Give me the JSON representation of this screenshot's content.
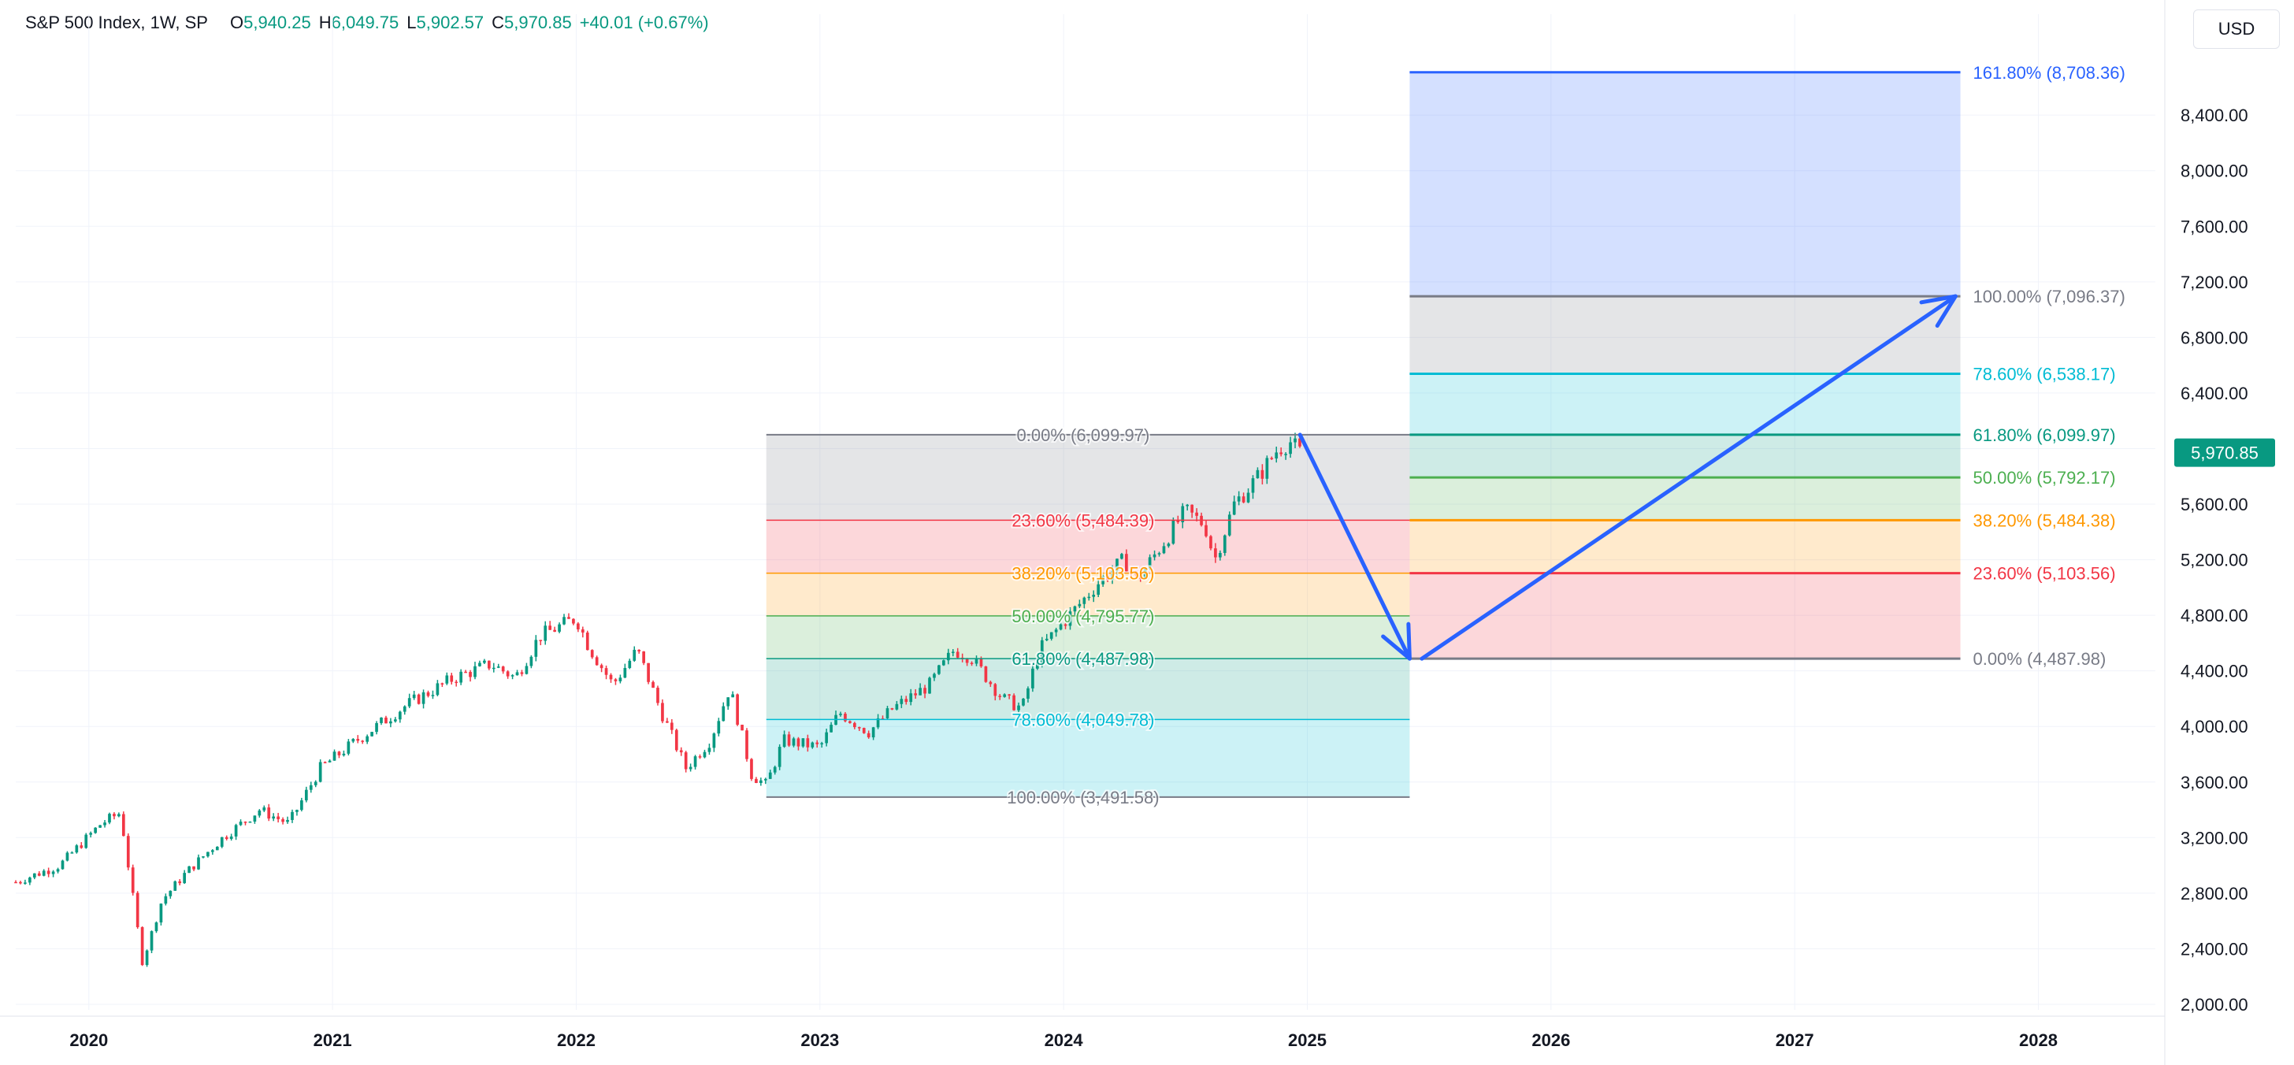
{
  "legend": {
    "symbol": "S&P 500 Index, 1W, SP",
    "open_label": "O",
    "open": "5,940.25",
    "high_label": "H",
    "high": "6,049.75",
    "low_label": "L",
    "low": "5,902.57",
    "close_label": "C",
    "close": "5,970.85",
    "change": "+40.01 (+0.67%)"
  },
  "currency_button": "USD",
  "last_price": "5,970.85",
  "colors": {
    "up": "#089981",
    "down": "#f23645",
    "accent": "#2962ff",
    "grid": "#f0f3fa",
    "axis_text": "#131722"
  },
  "chart_data": {
    "type": "candlestick",
    "title": "S&P 500 Index, 1W, SP",
    "ylim": [
      1960,
      8900
    ],
    "xlim": [
      2019.7,
      2028.48
    ],
    "y_ticks": [
      2000,
      2400,
      2800,
      3200,
      3600,
      4000,
      4400,
      4800,
      5200,
      5600,
      6000,
      6400,
      6800,
      7200,
      7600,
      8000,
      8400
    ],
    "y_tick_labels": [
      "2,000.00",
      "2,400.00",
      "2,800.00",
      "3,200.00",
      "3,600.00",
      "4,000.00",
      "4,400.00",
      "4,800.00",
      "5,200.00",
      "5,600.00",
      "6,000.00",
      "6,400.00",
      "6,800.00",
      "7,200.00",
      "7,600.00",
      "8,000.00",
      "8,400.00"
    ],
    "x_ticks": [
      2020,
      2021,
      2022,
      2023,
      2024,
      2025,
      2026,
      2027,
      2028
    ],
    "x_tick_labels": [
      "2020",
      "2021",
      "2022",
      "2023",
      "2024",
      "2025",
      "2026",
      "2027",
      "2028"
    ],
    "price_anchors": [
      [
        2019.7,
        2880
      ],
      [
        2019.88,
        3000
      ],
      [
        2020.05,
        3300
      ],
      [
        2020.13,
        3380
      ],
      [
        2020.17,
        2900
      ],
      [
        2020.22,
        2300
      ],
      [
        2020.3,
        2750
      ],
      [
        2020.4,
        2950
      ],
      [
        2020.55,
        3200
      ],
      [
        2020.7,
        3400
      ],
      [
        2020.82,
        3300
      ],
      [
        2020.95,
        3700
      ],
      [
        2021.1,
        3900
      ],
      [
        2021.3,
        4150
      ],
      [
        2021.5,
        4350
      ],
      [
        2021.65,
        4450
      ],
      [
        2021.75,
        4350
      ],
      [
        2021.85,
        4650
      ],
      [
        2022.0,
        4780
      ],
      [
        2022.05,
        4580
      ],
      [
        2022.15,
        4300
      ],
      [
        2022.25,
        4550
      ],
      [
        2022.35,
        4100
      ],
      [
        2022.45,
        3700
      ],
      [
        2022.55,
        3900
      ],
      [
        2022.63,
        4280
      ],
      [
        2022.72,
        3650
      ],
      [
        2022.78,
        3580
      ],
      [
        2022.85,
        3900
      ],
      [
        2023.0,
        3850
      ],
      [
        2023.08,
        4100
      ],
      [
        2023.2,
        3960
      ],
      [
        2023.3,
        4130
      ],
      [
        2023.45,
        4300
      ],
      [
        2023.55,
        4550
      ],
      [
        2023.62,
        4500
      ],
      [
        2023.75,
        4200
      ],
      [
        2023.83,
        4130
      ],
      [
        2023.9,
        4550
      ],
      [
        2024.0,
        4750
      ],
      [
        2024.15,
        5050
      ],
      [
        2024.25,
        5200
      ],
      [
        2024.3,
        5050
      ],
      [
        2024.4,
        5300
      ],
      [
        2024.5,
        5550
      ],
      [
        2024.58,
        5450
      ],
      [
        2024.62,
        5200
      ],
      [
        2024.7,
        5600
      ],
      [
        2024.8,
        5800
      ],
      [
        2024.88,
        6000
      ],
      [
        2024.93,
        6050
      ],
      [
        2024.97,
        5970
      ]
    ],
    "fib_retracement": {
      "from": {
        "x": 2022.78,
        "price": 3491.58
      },
      "to": {
        "x": 2024.93,
        "price": 6099.97
      },
      "x_end": 2025.42,
      "label_x": 2024.08,
      "levels": [
        {
          "ratio": "0.00%",
          "price": 6099.97,
          "text": "0.00% (6,099.97)",
          "color": "#787b86"
        },
        {
          "ratio": "23.60%",
          "price": 5484.39,
          "text": "23.60% (5,484.39)",
          "color": "#f23645"
        },
        {
          "ratio": "38.20%",
          "price": 5103.56,
          "text": "38.20% (5,103.56)",
          "color": "#ff9800"
        },
        {
          "ratio": "50.00%",
          "price": 4795.77,
          "text": "50.00% (4,795.77)",
          "color": "#4caf50"
        },
        {
          "ratio": "61.80%",
          "price": 4487.98,
          "text": "61.80% (4,487.98)",
          "color": "#089981"
        },
        {
          "ratio": "78.60%",
          "price": 4049.78,
          "text": "78.60% (4,049.78)",
          "color": "#00bcd4"
        },
        {
          "ratio": "100.00%",
          "price": 3491.58,
          "text": "100.00% (3,491.58)",
          "color": "#787b86"
        }
      ]
    },
    "fib_extension": {
      "x_start": 2025.42,
      "x_end": 2027.68,
      "levels": [
        {
          "ratio": "0.00%",
          "price": 4487.98,
          "text": "0.00% (4,487.98)",
          "color": "#787b86"
        },
        {
          "ratio": "23.60%",
          "price": 5103.56,
          "text": "23.60% (5,103.56)",
          "color": "#f23645"
        },
        {
          "ratio": "38.20%",
          "price": 5484.38,
          "text": "38.20% (5,484.38)",
          "color": "#ff9800"
        },
        {
          "ratio": "50.00%",
          "price": 5792.17,
          "text": "50.00% (5,792.17)",
          "color": "#4caf50"
        },
        {
          "ratio": "61.80%",
          "price": 6099.97,
          "text": "61.80% (6,099.97)",
          "color": "#089981"
        },
        {
          "ratio": "78.60%",
          "price": 6538.17,
          "text": "78.60% (6,538.17)",
          "color": "#00bcd4"
        },
        {
          "ratio": "100.00%",
          "price": 7096.37,
          "text": "100.00% (7,096.37)",
          "color": "#787b86"
        },
        {
          "ratio": "161.80%",
          "price": 8708.36,
          "text": "161.80% (8,708.36)",
          "color": "#2962ff"
        }
      ]
    },
    "arrows": [
      {
        "from": {
          "x": 2024.97,
          "price": 6099.97
        },
        "to": {
          "x": 2025.42,
          "price": 4487.98
        }
      },
      {
        "from": {
          "x": 2025.47,
          "price": 4487.98
        },
        "to": {
          "x": 2027.66,
          "price": 7096.37
        }
      }
    ]
  }
}
